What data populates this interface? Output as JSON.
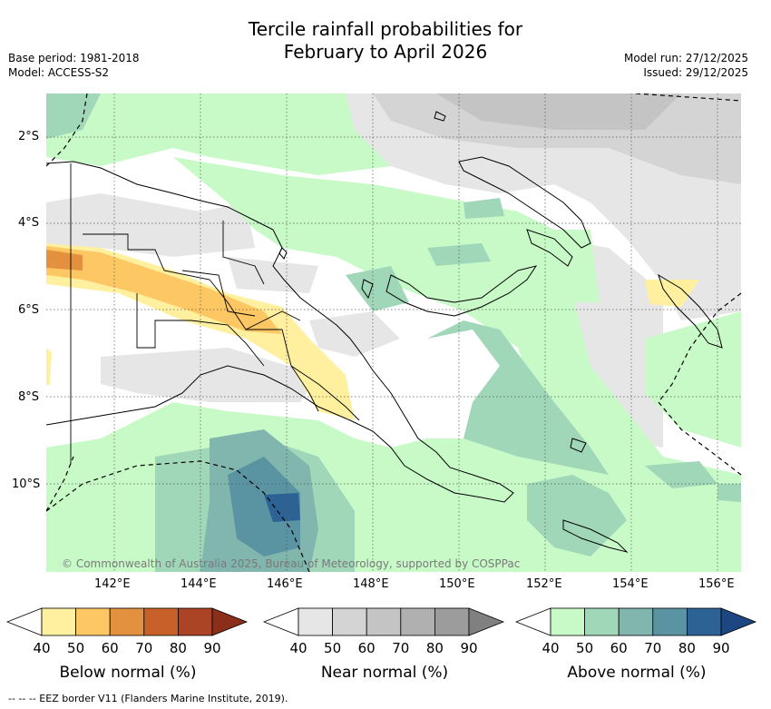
{
  "title_line1": "Tercile rainfall probabilities for",
  "title_line2": "February to April 2026",
  "meta_left": [
    "Base period: 1981-2018",
    "Model: ACCESS-S2"
  ],
  "meta_right": [
    "Model run: 27/12/2025",
    "Issued: 29/12/2025"
  ],
  "copyright": "© Commonwealth of Australia 2025, Bureau of Meteorology, supported by COSPPac",
  "lat_ticks": [
    "2°S",
    "4°S",
    "6°S",
    "8°S",
    "10°S"
  ],
  "lon_ticks": [
    "142°E",
    "144°E",
    "146°E",
    "148°E",
    "150°E",
    "152°E",
    "154°E",
    "156°E"
  ],
  "colorbars": [
    {
      "title": "Below normal (%)",
      "labels": [
        "40",
        "50",
        "60",
        "70",
        "80",
        "90"
      ],
      "colors": [
        "#fff0a0",
        "#fdc864",
        "#e3913f",
        "#c8602a",
        "#ab4424",
        "#8c2f1a"
      ]
    },
    {
      "title": "Near normal (%)",
      "labels": [
        "40",
        "50",
        "60",
        "70",
        "80",
        "90"
      ],
      "colors": [
        "#e6e6e6",
        "#d4d4d4",
        "#c4c4c4",
        "#b0b0b0",
        "#9c9c9c",
        "#808080"
      ]
    },
    {
      "title": "Above normal (%)",
      "labels": [
        "40",
        "50",
        "60",
        "70",
        "80",
        "90"
      ],
      "colors": [
        "#c8fac8",
        "#a0d7b9",
        "#80b6ad",
        "#5a93a2",
        "#2c6294",
        "#1e4682"
      ]
    }
  ],
  "footer": "--  --  -- EEZ border V11 (Flanders Marine Institute, 2019).",
  "map_colors": {
    "ocean_default": "#ffffff",
    "land_line": "#000000"
  }
}
